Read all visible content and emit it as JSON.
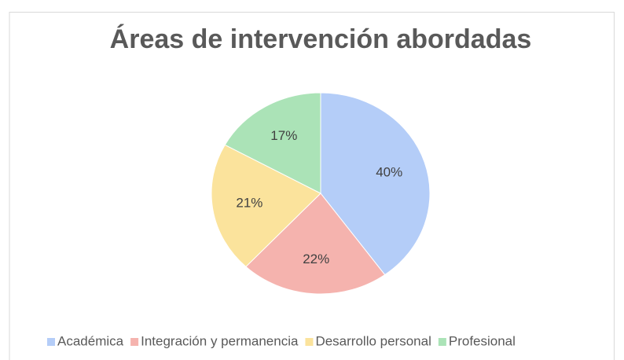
{
  "chart_data": {
    "type": "pie",
    "title": "Áreas de intervención abordadas",
    "categories": [
      "Académica",
      "Integración y permanencia",
      "Desarrollo personal",
      "Profesional"
    ],
    "values": [
      40,
      22,
      21,
      17
    ],
    "value_labels": [
      "40%",
      "22%",
      "21%",
      "17%"
    ],
    "colors": [
      "#b4cdf8",
      "#f5b3ae",
      "#fbe39c",
      "#abe3b7"
    ],
    "legend": "bottom"
  }
}
